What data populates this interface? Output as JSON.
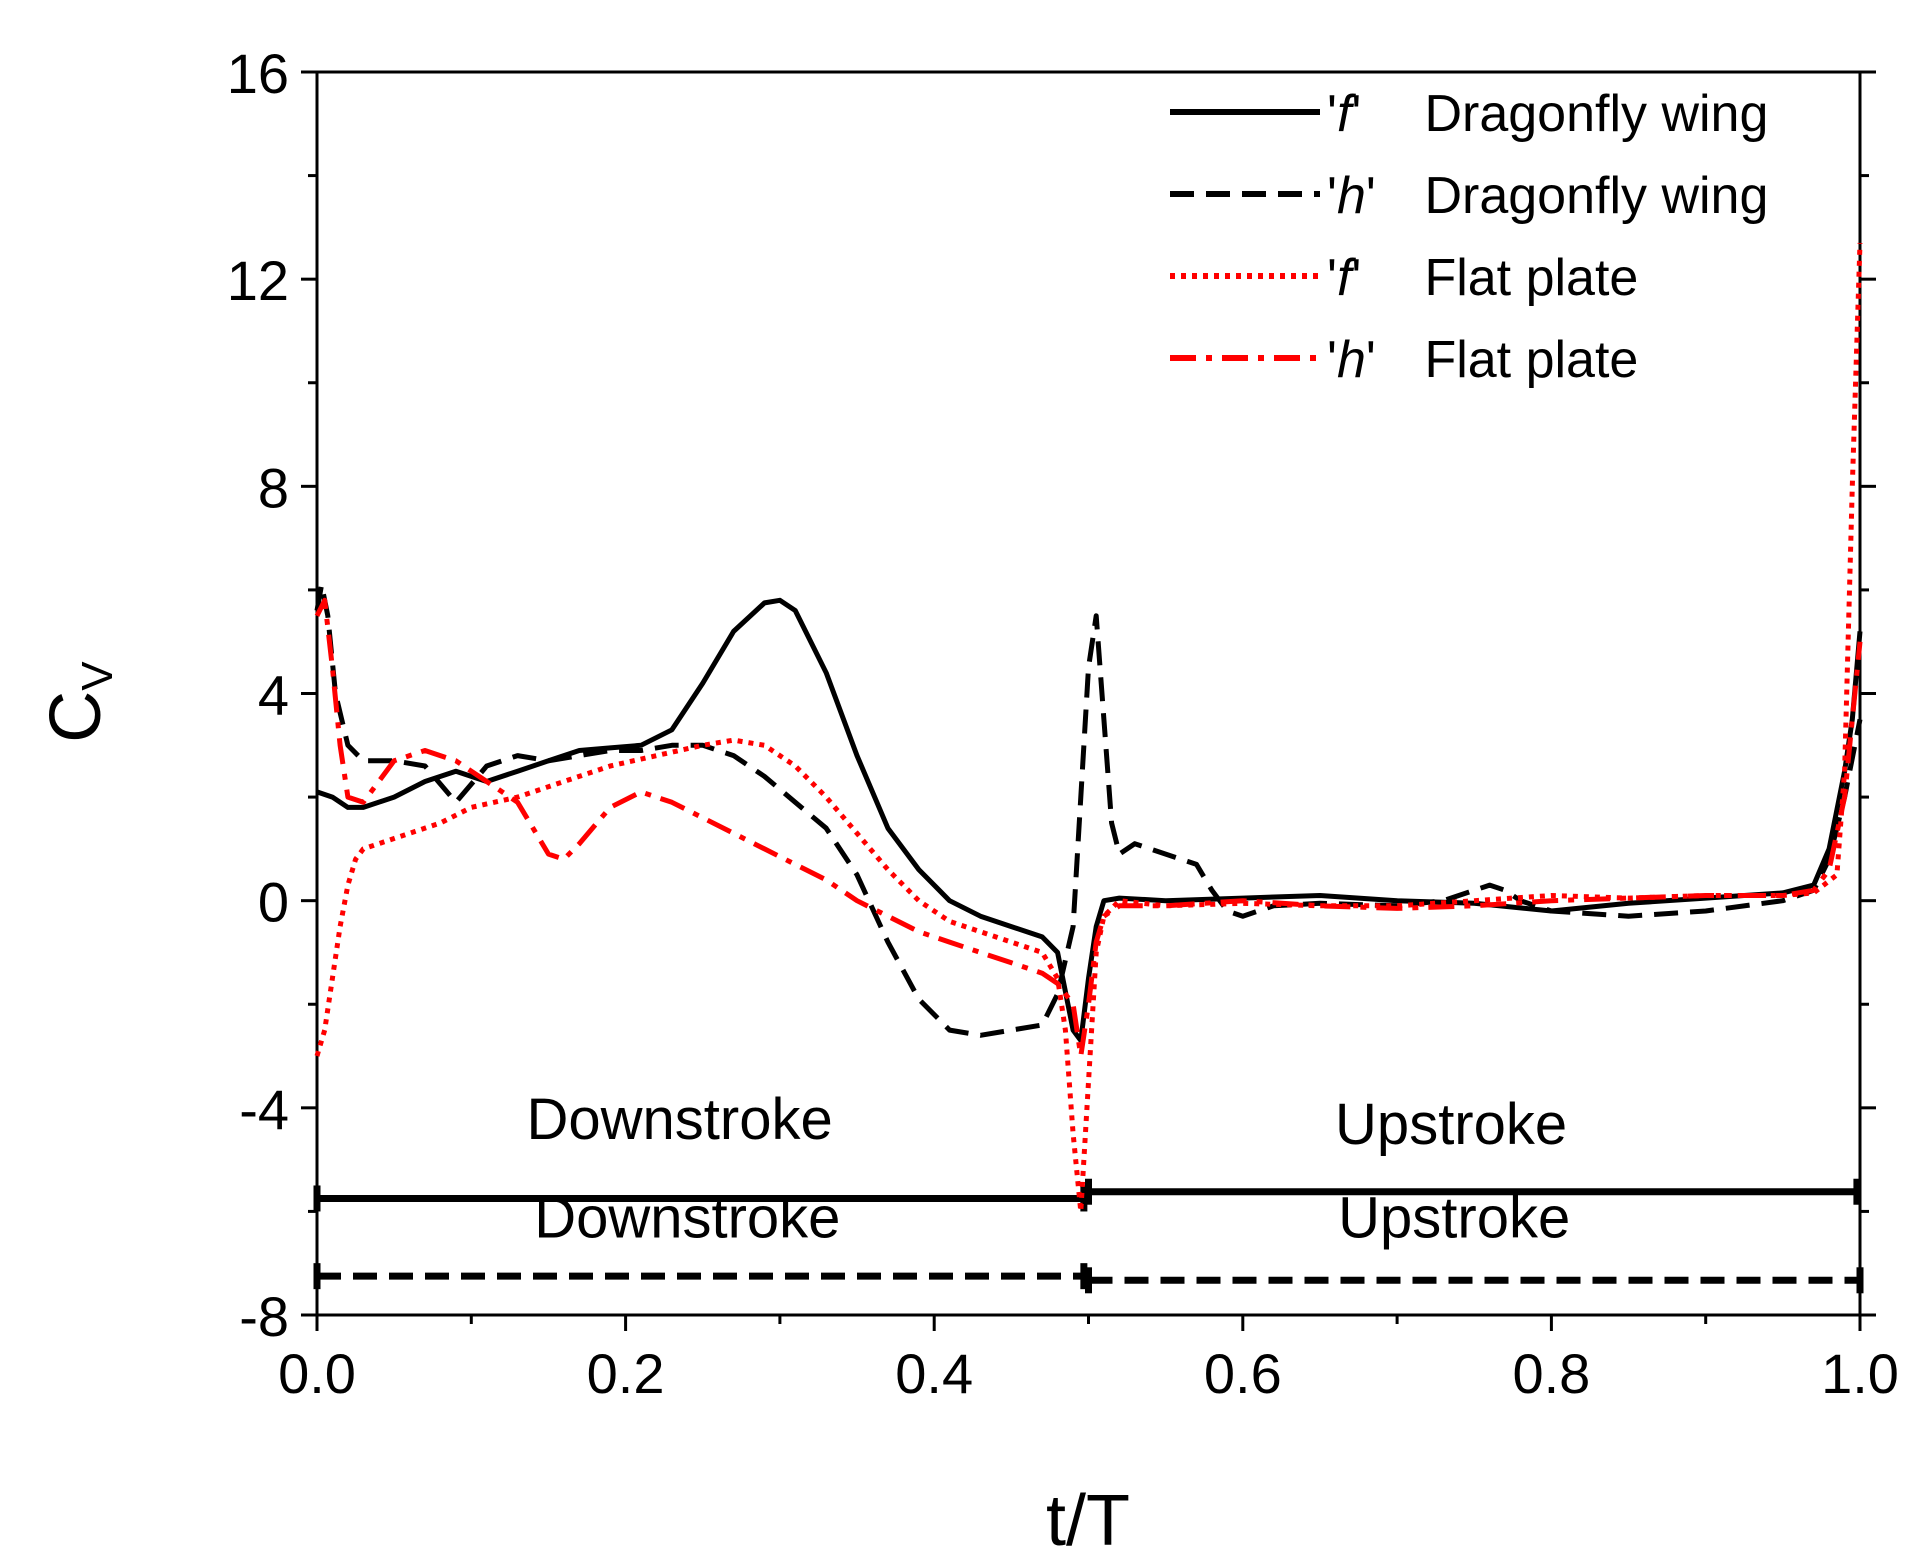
{
  "chart_data": {
    "type": "line",
    "title": "",
    "xlabel": "t/T",
    "ylabel": {
      "main": "C",
      "sub": "V"
    },
    "xlim": [
      0.0,
      1.0
    ],
    "ylim": [
      -8,
      16
    ],
    "xticks": [
      0.0,
      0.2,
      0.4,
      0.6,
      0.8,
      1.0
    ],
    "xtick_labels": [
      "0.0",
      "0.2",
      "0.4",
      "0.6",
      "0.8",
      "1.0"
    ],
    "yticks": [
      -8,
      -4,
      0,
      4,
      8,
      12,
      16
    ],
    "ytick_labels": [
      "-8",
      "-4",
      "0",
      "4",
      "8",
      "12",
      "16"
    ],
    "grid": false,
    "legend_position": "top-right",
    "series": [
      {
        "id": "f-dragonfly",
        "legend": {
          "quote": "'f'",
          "label": "Dragonfly wing"
        },
        "color": "#000000",
        "style": "solid",
        "x": [
          0.0,
          0.01,
          0.02,
          0.03,
          0.05,
          0.07,
          0.09,
          0.11,
          0.13,
          0.15,
          0.17,
          0.19,
          0.21,
          0.23,
          0.25,
          0.27,
          0.29,
          0.3,
          0.31,
          0.33,
          0.35,
          0.37,
          0.39,
          0.41,
          0.43,
          0.45,
          0.47,
          0.48,
          0.49,
          0.495,
          0.5,
          0.505,
          0.51,
          0.52,
          0.55,
          0.6,
          0.65,
          0.7,
          0.75,
          0.8,
          0.85,
          0.9,
          0.95,
          0.97,
          0.98,
          0.99,
          0.995,
          1.0
        ],
        "y": [
          2.1,
          2.0,
          1.8,
          1.8,
          2.0,
          2.3,
          2.5,
          2.3,
          2.5,
          2.7,
          2.9,
          2.95,
          3.0,
          3.3,
          4.2,
          5.2,
          5.75,
          5.8,
          5.6,
          4.4,
          2.8,
          1.4,
          0.6,
          0.0,
          -0.3,
          -0.5,
          -0.7,
          -1.0,
          -2.5,
          -2.7,
          -1.5,
          -0.5,
          0.0,
          0.05,
          0.0,
          0.05,
          0.1,
          0.0,
          -0.05,
          -0.2,
          -0.05,
          0.05,
          0.15,
          0.3,
          1.0,
          2.5,
          3.5,
          5.2
        ]
      },
      {
        "id": "h-dragonfly",
        "legend": {
          "quote": "'h'",
          "label": "Dragonfly wing"
        },
        "color": "#000000",
        "style": "dashed",
        "x": [
          0.0,
          0.003,
          0.007,
          0.012,
          0.02,
          0.03,
          0.05,
          0.07,
          0.09,
          0.11,
          0.13,
          0.15,
          0.17,
          0.19,
          0.21,
          0.23,
          0.25,
          0.27,
          0.29,
          0.31,
          0.33,
          0.35,
          0.37,
          0.39,
          0.41,
          0.43,
          0.45,
          0.47,
          0.48,
          0.49,
          0.495,
          0.5,
          0.505,
          0.51,
          0.515,
          0.52,
          0.53,
          0.55,
          0.57,
          0.58,
          0.59,
          0.6,
          0.62,
          0.65,
          0.7,
          0.73,
          0.75,
          0.76,
          0.77,
          0.78,
          0.8,
          0.85,
          0.9,
          0.95,
          0.97,
          0.98,
          0.99,
          1.0
        ],
        "y": [
          5.6,
          6.1,
          5.5,
          4.0,
          3.0,
          2.7,
          2.7,
          2.6,
          1.9,
          2.6,
          2.8,
          2.7,
          2.8,
          2.9,
          2.9,
          3.0,
          3.0,
          2.8,
          2.4,
          1.9,
          1.4,
          0.5,
          -0.8,
          -1.9,
          -2.5,
          -2.6,
          -2.5,
          -2.4,
          -1.8,
          -0.5,
          2.0,
          4.5,
          5.5,
          3.5,
          1.5,
          0.9,
          1.1,
          0.9,
          0.7,
          0.2,
          -0.2,
          -0.3,
          -0.1,
          -0.05,
          -0.1,
          0.0,
          0.2,
          0.3,
          0.2,
          0.0,
          -0.2,
          -0.3,
          -0.2,
          0.0,
          0.2,
          0.8,
          2.0,
          3.5
        ]
      },
      {
        "id": "f-flatplate",
        "legend": {
          "quote": "'f'",
          "label": "Flat plate"
        },
        "color": "#ff0000",
        "style": "dotted",
        "x": [
          0.0,
          0.005,
          0.01,
          0.015,
          0.02,
          0.025,
          0.03,
          0.04,
          0.06,
          0.08,
          0.1,
          0.13,
          0.16,
          0.19,
          0.22,
          0.25,
          0.27,
          0.29,
          0.31,
          0.33,
          0.35,
          0.37,
          0.39,
          0.41,
          0.43,
          0.45,
          0.47,
          0.48,
          0.485,
          0.49,
          0.495,
          0.5,
          0.505,
          0.51,
          0.52,
          0.55,
          0.6,
          0.65,
          0.7,
          0.75,
          0.8,
          0.85,
          0.9,
          0.95,
          0.97,
          0.985,
          0.99,
          0.995,
          1.0
        ],
        "y": [
          -3.0,
          -2.5,
          -1.5,
          -0.5,
          0.3,
          0.8,
          1.0,
          1.1,
          1.3,
          1.5,
          1.8,
          2.0,
          2.3,
          2.6,
          2.8,
          3.0,
          3.1,
          3.0,
          2.6,
          2.0,
          1.3,
          0.6,
          0.0,
          -0.4,
          -0.6,
          -0.8,
          -1.0,
          -1.5,
          -2.5,
          -4.5,
          -6.0,
          -3.5,
          -1.0,
          -0.3,
          0.0,
          -0.1,
          -0.05,
          -0.1,
          -0.1,
          0.0,
          0.1,
          0.05,
          0.1,
          0.1,
          0.15,
          0.5,
          2.5,
          8.0,
          12.7
        ]
      },
      {
        "id": "h-flatplate",
        "legend": {
          "quote": "'h'",
          "label": "Flat plate"
        },
        "color": "#ff0000",
        "style": "dashdot",
        "x": [
          0.0,
          0.005,
          0.01,
          0.015,
          0.02,
          0.03,
          0.05,
          0.07,
          0.09,
          0.11,
          0.13,
          0.15,
          0.16,
          0.17,
          0.19,
          0.21,
          0.23,
          0.25,
          0.27,
          0.29,
          0.31,
          0.33,
          0.35,
          0.37,
          0.39,
          0.41,
          0.43,
          0.45,
          0.47,
          0.48,
          0.49,
          0.495,
          0.5,
          0.505,
          0.51,
          0.52,
          0.55,
          0.6,
          0.65,
          0.7,
          0.75,
          0.8,
          0.85,
          0.9,
          0.95,
          0.97,
          0.98,
          0.99,
          1.0
        ],
        "y": [
          5.5,
          5.8,
          4.5,
          3.0,
          2.0,
          1.9,
          2.7,
          2.9,
          2.7,
          2.3,
          1.9,
          0.9,
          0.8,
          1.1,
          1.8,
          2.1,
          1.9,
          1.6,
          1.3,
          1.0,
          0.7,
          0.4,
          0.0,
          -0.3,
          -0.6,
          -0.8,
          -1.0,
          -1.2,
          -1.4,
          -1.6,
          -2.0,
          -3.0,
          -2.0,
          -0.8,
          -0.3,
          -0.1,
          -0.1,
          0.0,
          -0.1,
          -0.15,
          -0.1,
          0.0,
          0.05,
          0.1,
          0.1,
          0.2,
          0.6,
          2.0,
          5.0
        ]
      }
    ],
    "annotations": [
      {
        "id": "downstroke-solid",
        "text": "Downstroke",
        "x": 0.235,
        "y": -4.6
      },
      {
        "id": "upstroke-solid",
        "text": "Upstroke",
        "x": 0.735,
        "y": -4.7
      },
      {
        "id": "downstroke-dashed",
        "text": "Downstroke",
        "x": 0.24,
        "y": -6.5
      },
      {
        "id": "upstroke-dashed",
        "text": "Upstroke",
        "x": 0.737,
        "y": -6.5
      }
    ],
    "phase_bars": [
      {
        "id": "dragonfly-f-phases",
        "style": "solid",
        "color": "#000000",
        "segments": [
          [
            0.0,
            0.497,
            -5.75
          ],
          [
            0.5,
            0.998,
            -5.62
          ]
        ]
      },
      {
        "id": "dragonfly-h-phases",
        "style": "dashed",
        "color": "#000000",
        "segments": [
          [
            0.0,
            0.497,
            -7.25
          ],
          [
            0.5,
            1.0,
            -7.33
          ]
        ]
      }
    ]
  }
}
